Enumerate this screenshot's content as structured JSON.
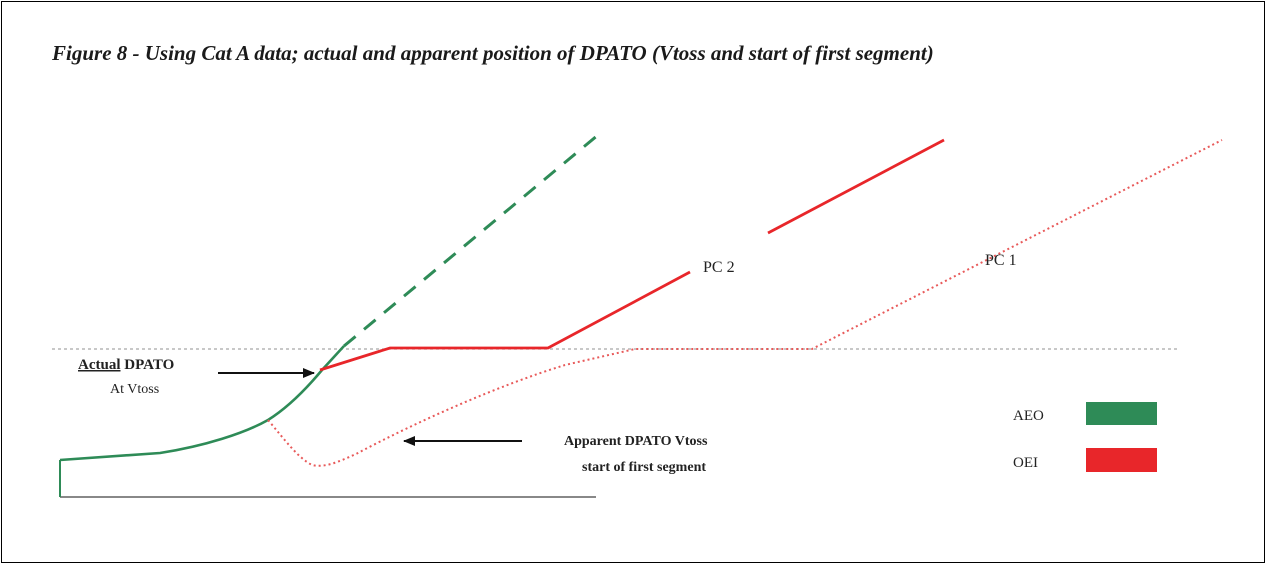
{
  "figure": {
    "title": "Figure 8 - Using Cat A data; actual and apparent position of DPATO (Vtoss and start of first segment)"
  },
  "labels": {
    "actual_line1_a": "Actual",
    "actual_line1_b": " DPATO",
    "actual_line2": "At Vtoss",
    "pc2": "PC 2",
    "pc1": "PC 1",
    "apparent_line1": "Apparent DPATO Vtoss",
    "apparent_line2": "start of first segment"
  },
  "legend": {
    "items": [
      {
        "label": "AEO",
        "color": "#2e8b57"
      },
      {
        "label": "OEI",
        "color": "#e8262a"
      }
    ]
  },
  "colors": {
    "aeo": "#2e8b57",
    "oei": "#e8262a",
    "oei_dotted": "#e85a5a",
    "reference_line": "#a8a8a8",
    "ground": "#888888",
    "arrow": "#111111"
  }
}
